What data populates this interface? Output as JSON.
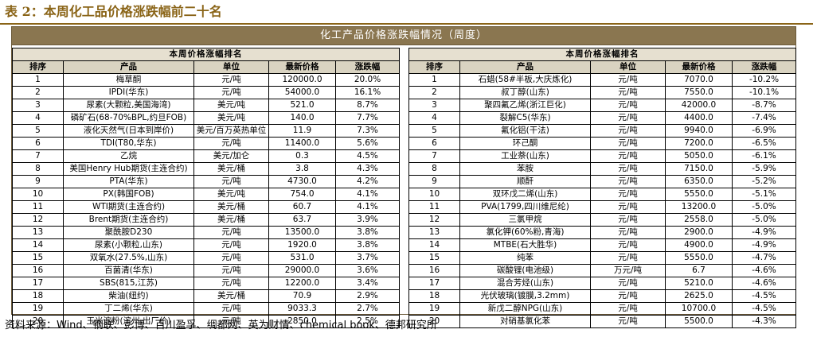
{
  "caption": "表 2：本周化工品价格涨跌幅前二十名",
  "banner": "化工产品价格涨跌幅情况（周度）",
  "left": {
    "subtitle": "本周价格涨幅排名",
    "headers": [
      "排序",
      "产品",
      "单位",
      "最新价格",
      "涨跌幅"
    ],
    "rows": [
      [
        "1",
        "梅草酮",
        "元/吨",
        "120000.0",
        "20.0%"
      ],
      [
        "2",
        "IPDI(华东)",
        "元/吨",
        "54000.0",
        "16.1%"
      ],
      [
        "3",
        "尿素(大颗粒,美国海湾)",
        "美元/吨",
        "521.0",
        "8.7%"
      ],
      [
        "4",
        "磷矿石(68-70%BPL,约旦FOB)",
        "美元/吨",
        "140.0",
        "7.7%"
      ],
      [
        "5",
        "液化天然气(日本到岸价)",
        "美元/百万英热单位",
        "11.9",
        "7.3%"
      ],
      [
        "6",
        "TDI(T80,华东)",
        "元/吨",
        "11400.0",
        "5.6%"
      ],
      [
        "7",
        "乙烷",
        "美元/加仑",
        "0.3",
        "4.5%"
      ],
      [
        "8",
        "美国Henry Hub期货(主连合约)",
        "美元/桶",
        "3.8",
        "4.3%"
      ],
      [
        "9",
        "PTA(华东)",
        "元/吨",
        "4730.0",
        "4.2%"
      ],
      [
        "10",
        "PX(韩国FOB)",
        "美元/吨",
        "754.0",
        "4.1%"
      ],
      [
        "11",
        "WTI期货(主连合约)",
        "美元/桶",
        "60.7",
        "4.1%"
      ],
      [
        "12",
        "Brent期货(主连合约)",
        "美元/桶",
        "63.7",
        "3.9%"
      ],
      [
        "13",
        "聚酰胺D230",
        "元/吨",
        "13500.0",
        "3.8%"
      ],
      [
        "14",
        "尿素(小颗粒,山东)",
        "元/吨",
        "1920.0",
        "3.8%"
      ],
      [
        "15",
        "双氧水(27.5%,山东)",
        "元/吨",
        "531.0",
        "3.7%"
      ],
      [
        "16",
        "百菌清(华东)",
        "元/吨",
        "29000.0",
        "3.6%"
      ],
      [
        "17",
        "SBS(815,江苏)",
        "元/吨",
        "12200.0",
        "3.4%"
      ],
      [
        "18",
        "柴油(纽约)",
        "美元/桶",
        "70.9",
        "2.9%"
      ],
      [
        "19",
        "丁二烯(华东)",
        "元/吨",
        "9033.3",
        "2.7%"
      ],
      [
        "20",
        "玉米淀粉(滨州,出厂价)",
        "元/吨",
        "2850.0",
        "2.5%"
      ]
    ]
  },
  "right": {
    "subtitle": "本周价格涨幅排名",
    "headers": [
      "排序",
      "产品",
      "单位",
      "最新价格",
      "涨跌幅"
    ],
    "rows": [
      [
        "1",
        "石蜡(58#半板,大庆炼化)",
        "元/吨",
        "7070.0",
        "-10.2%"
      ],
      [
        "2",
        "叔丁醇(山东)",
        "元/吨",
        "7550.0",
        "-10.1%"
      ],
      [
        "3",
        "聚四氟乙烯(浙江巨化)",
        "元/吨",
        "42000.0",
        "-8.7%"
      ],
      [
        "4",
        "裂解C5(华东)",
        "元/吨",
        "4400.0",
        "-7.4%"
      ],
      [
        "5",
        "氟化铝(干法)",
        "元/吨",
        "9940.0",
        "-6.9%"
      ],
      [
        "6",
        "环己酮",
        "元/吨",
        "7200.0",
        "-6.5%"
      ],
      [
        "7",
        "工业萘(山东)",
        "元/吨",
        "5050.0",
        "-6.1%"
      ],
      [
        "8",
        "苯胺",
        "元/吨",
        "7150.0",
        "-5.9%"
      ],
      [
        "9",
        "顺酐",
        "元/吨",
        "6350.0",
        "-5.2%"
      ],
      [
        "10",
        "双环戊二烯(山东)",
        "元/吨",
        "5550.0",
        "-5.1%"
      ],
      [
        "11",
        "PVA(1799,四川维尼纶)",
        "元/吨",
        "13200.0",
        "-5.0%"
      ],
      [
        "12",
        "三氯甲烷",
        "元/吨",
        "2558.0",
        "-5.0%"
      ],
      [
        "13",
        "氯化钾(60%粉,青海)",
        "元/吨",
        "2900.0",
        "-4.9%"
      ],
      [
        "14",
        "MTBE(石大胜华)",
        "元/吨",
        "4900.0",
        "-4.9%"
      ],
      [
        "15",
        "纯苯",
        "元/吨",
        "5550.0",
        "-4.7%"
      ],
      [
        "16",
        "碳酸锂(电池级)",
        "万元/吨",
        "6.7",
        "-4.6%"
      ],
      [
        "17",
        "混合芳烃(山东)",
        "元/吨",
        "5210.0",
        "-4.6%"
      ],
      [
        "18",
        "光伏玻璃(镀膜,3.2mm)",
        "元/吨",
        "2625.0",
        "-4.5%"
      ],
      [
        "19",
        "新戊二醇NPG(山东)",
        "元/吨",
        "10700.0",
        "-4.5%"
      ],
      [
        "20",
        "对硝基氯化苯",
        "元/吨",
        "5500.0",
        "-4.3%"
      ]
    ]
  },
  "source": "资料来源：Wind、钢联、彭博、百川盈孚、绸都网、英为财情、chemical book、德邦研究所"
}
